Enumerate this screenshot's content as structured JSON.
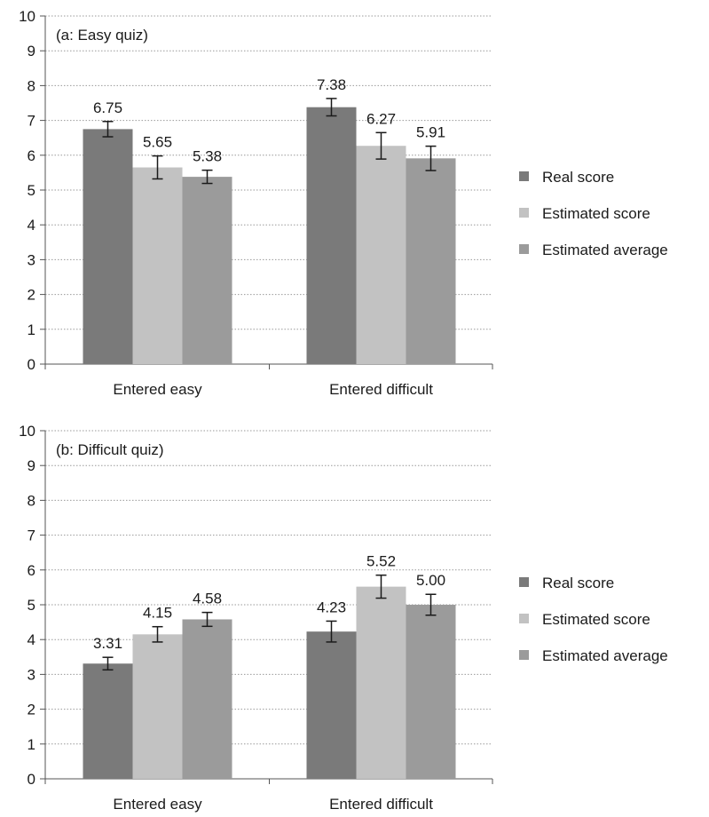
{
  "chart_data": [
    {
      "type": "bar",
      "annotation": "(a: Easy quiz)",
      "categories": [
        "Entered easy",
        "Entered difficult"
      ],
      "ylim": [
        0,
        10
      ],
      "yticks": [
        0,
        1,
        2,
        3,
        4,
        5,
        6,
        7,
        8,
        9,
        10
      ],
      "grid": true,
      "legend_position": "right",
      "series": [
        {
          "name": "Real score",
          "color": "#7a7a7a",
          "values": [
            6.75,
            7.38
          ],
          "labels": [
            "6.75",
            "7.38"
          ],
          "err": [
            0.22,
            0.25
          ]
        },
        {
          "name": "Estimated score",
          "color": "#c2c2c2",
          "values": [
            5.65,
            6.27
          ],
          "labels": [
            "5.65",
            "6.27"
          ],
          "err": [
            0.33,
            0.38
          ]
        },
        {
          "name": "Estimated average",
          "color": "#9b9b9b",
          "values": [
            5.38,
            5.91
          ],
          "labels": [
            "5.38",
            "5.91"
          ],
          "err": [
            0.19,
            0.35
          ]
        }
      ]
    },
    {
      "type": "bar",
      "annotation": "(b: Difficult quiz)",
      "categories": [
        "Entered easy",
        "Entered difficult"
      ],
      "ylim": [
        0,
        10
      ],
      "yticks": [
        0,
        1,
        2,
        3,
        4,
        5,
        6,
        7,
        8,
        9,
        10
      ],
      "grid": true,
      "legend_position": "right",
      "series": [
        {
          "name": "Real score",
          "color": "#7a7a7a",
          "values": [
            3.31,
            4.23
          ],
          "labels": [
            "3.31",
            "4.23"
          ],
          "err": [
            0.18,
            0.3
          ]
        },
        {
          "name": "Estimated score",
          "color": "#c2c2c2",
          "values": [
            4.15,
            5.52
          ],
          "labels": [
            "4.15",
            "5.52"
          ],
          "err": [
            0.22,
            0.33
          ]
        },
        {
          "name": "Estimated average",
          "color": "#9b9b9b",
          "values": [
            4.58,
            5.0
          ],
          "labels": [
            "4.58",
            "5.00"
          ],
          "err": [
            0.2,
            0.3
          ]
        }
      ]
    }
  ]
}
